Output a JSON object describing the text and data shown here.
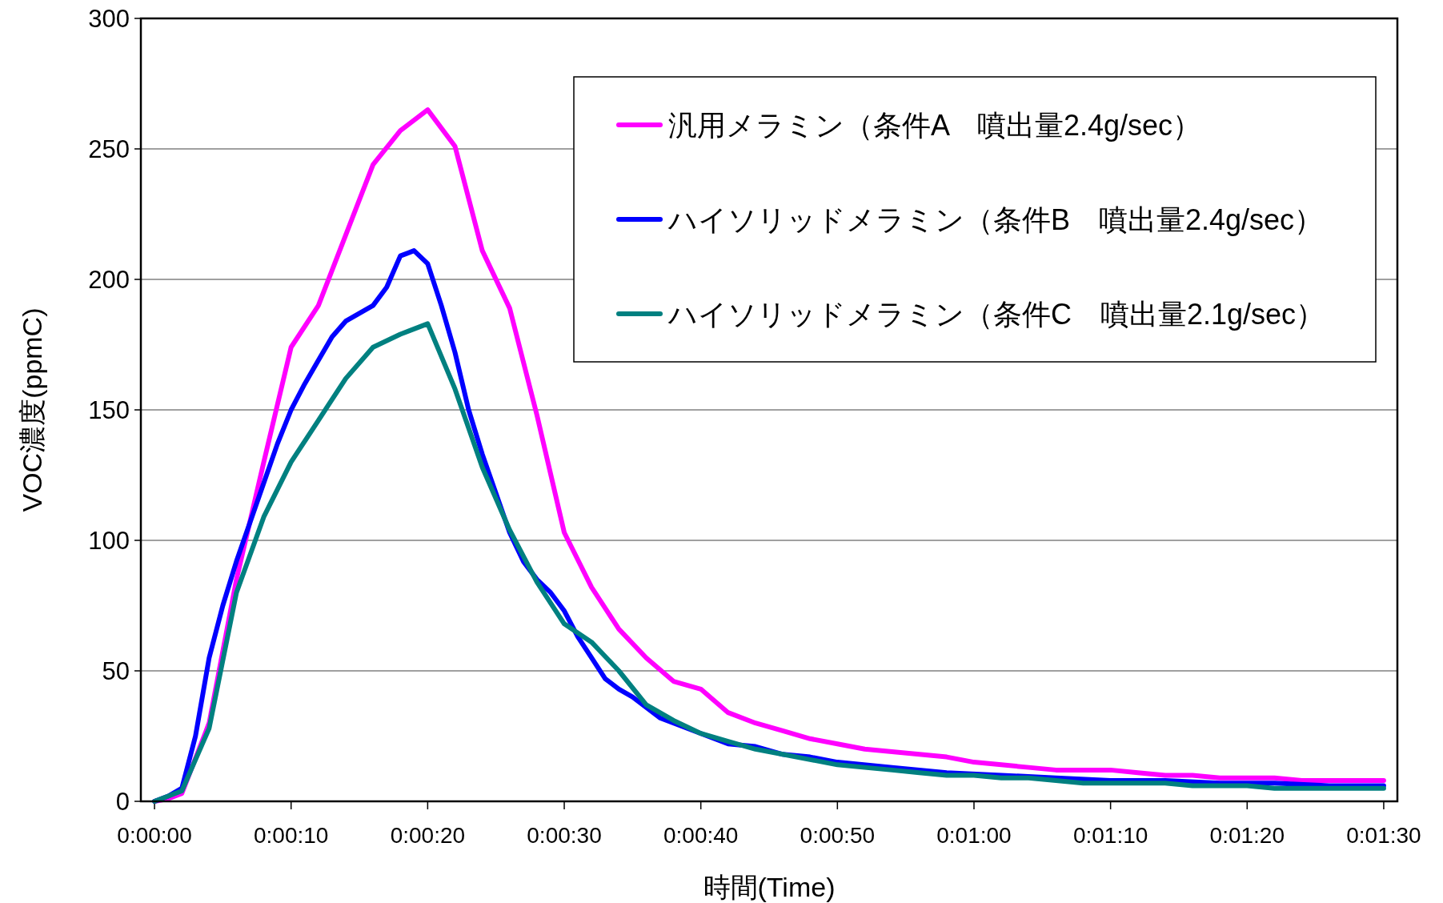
{
  "chart_data": {
    "type": "line",
    "xlabel": "時間(Time)",
    "ylabel": "VOC濃度(ppmC)",
    "xlim": [
      -1,
      91
    ],
    "ylim": [
      0,
      300
    ],
    "xticks": [
      {
        "value": 0,
        "label": "0:00:00"
      },
      {
        "value": 10,
        "label": "0:00:10"
      },
      {
        "value": 20,
        "label": "0:00:20"
      },
      {
        "value": 30,
        "label": "0:00:30"
      },
      {
        "value": 40,
        "label": "0:00:40"
      },
      {
        "value": 50,
        "label": "0:00:50"
      },
      {
        "value": 60,
        "label": "0:01:00"
      },
      {
        "value": 70,
        "label": "0:01:10"
      },
      {
        "value": 80,
        "label": "0:01:20"
      },
      {
        "value": 90,
        "label": "0:01:30"
      }
    ],
    "yticks": [
      0,
      50,
      100,
      150,
      200,
      250,
      300
    ],
    "grid": "y",
    "legend": "top right",
    "line_style": "solid",
    "marker": "none",
    "series": [
      {
        "name": "汎用メラミン（条件A　噴出量2.4g/sec）",
        "color": "#ff00ff",
        "x": [
          0,
          1,
          2,
          4,
          6,
          8,
          10,
          12,
          14,
          16,
          18,
          20,
          22,
          24,
          26,
          28,
          30,
          32,
          34,
          36,
          38,
          40,
          42,
          44,
          46,
          48,
          50,
          52,
          54,
          56,
          58,
          60,
          62,
          64,
          66,
          68,
          70,
          72,
          74,
          76,
          78,
          80,
          82,
          84,
          86,
          88,
          90
        ],
        "values": [
          0,
          1,
          3,
          30,
          85,
          130,
          174,
          190,
          217,
          244,
          257,
          265,
          251,
          211,
          189,
          148,
          103,
          82,
          66,
          55,
          46,
          43,
          34,
          30,
          27,
          24,
          22,
          20,
          19,
          18,
          17,
          15,
          14,
          13,
          12,
          12,
          12,
          11,
          10,
          10,
          9,
          9,
          9,
          8,
          8,
          8,
          8
        ]
      },
      {
        "name": "ハイソリッドメラミン（条件B　噴出量2.4g/sec）",
        "color": "#0000ff",
        "x": [
          0,
          1,
          2,
          3,
          4,
          5,
          6,
          7,
          8,
          9,
          10,
          11,
          12,
          13,
          14,
          15,
          16,
          17,
          18,
          19,
          20,
          21,
          22,
          23,
          24,
          25,
          26,
          27,
          28,
          29,
          30,
          31,
          32,
          33,
          34,
          35,
          36,
          37,
          38,
          39,
          40,
          41,
          42,
          44,
          46,
          48,
          50,
          54,
          58,
          62,
          66,
          70,
          74,
          78,
          82,
          86,
          90
        ],
        "values": [
          0,
          2,
          5,
          25,
          55,
          75,
          92,
          107,
          122,
          137,
          150,
          160,
          169,
          178,
          184,
          187,
          190,
          197,
          209,
          211,
          206,
          190,
          172,
          150,
          133,
          118,
          103,
          92,
          85,
          80,
          73,
          63,
          55,
          47,
          43,
          40,
          36,
          32,
          30,
          28,
          26,
          24,
          22,
          21,
          18,
          17,
          15,
          13,
          11,
          10,
          9,
          8,
          8,
          7,
          7,
          6,
          6
        ]
      },
      {
        "name": "ハイソリッドメラミン（条件C　噴出量2.1g/sec）",
        "color": "#008080",
        "x": [
          0,
          1,
          2,
          4,
          6,
          8,
          10,
          12,
          14,
          16,
          18,
          20,
          22,
          24,
          26,
          28,
          30,
          32,
          34,
          36,
          38,
          40,
          42,
          44,
          46,
          48,
          50,
          52,
          54,
          56,
          58,
          60,
          62,
          64,
          66,
          68,
          70,
          72,
          74,
          76,
          78,
          80,
          82,
          84,
          86,
          88,
          90
        ],
        "values": [
          0,
          2,
          4,
          28,
          80,
          109,
          130,
          146,
          162,
          174,
          179,
          183,
          158,
          128,
          104,
          84,
          68,
          61,
          50,
          37,
          31,
          26,
          23,
          20,
          18,
          16,
          14,
          13,
          12,
          11,
          10,
          10,
          9,
          9,
          8,
          7,
          7,
          7,
          7,
          6,
          6,
          6,
          5,
          5,
          5,
          5,
          5
        ]
      }
    ]
  }
}
